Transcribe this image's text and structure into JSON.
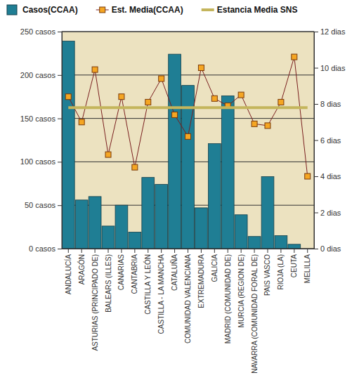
{
  "chart_data": {
    "type": "bar",
    "categories": [
      "ANDALUCÍA",
      "ARAGÓN",
      "ASTURIAS (PRINCIPADO DE)",
      "BALEARS (ILLES)",
      "CANARIAS",
      "CANTABRIA",
      "CASTILLA Y LEÓN",
      "CASTILLA - LA MANCHA",
      "CATALUÑA",
      "COMUNIDAD VALENCIANA",
      "EXTREMADURA",
      "GALICIA",
      "MADRID (COMUNIDAD DE)",
      "MURCIA (REGION DE)",
      "NAVARRA (COMUNIDAD FORAL DE)",
      "PAIS VASCO",
      "RIOJA (LA)",
      "CEUTA",
      "MELILLA"
    ],
    "series": [
      {
        "name": "Casos(CCAA)",
        "type": "bar",
        "color": "#1f7e94",
        "values": [
          239,
          56,
          60,
          26,
          50,
          19,
          82,
          74,
          224,
          188,
          47,
          121,
          176,
          39,
          14,
          83,
          15,
          5,
          0
        ]
      },
      {
        "name": "Est. Media(CCAA)",
        "type": "line",
        "axis": "y2",
        "color": "#7a1f1f",
        "marker": "square",
        "line_style": "solid",
        "values": [
          8.4,
          7.0,
          9.9,
          5.2,
          8.4,
          4.5,
          8.1,
          9.4,
          7.4,
          6.2,
          10.0,
          8.3,
          7.9,
          8.5,
          6.9,
          6.8,
          8.1,
          10.6,
          4.0
        ]
      },
      {
        "name": "Estancia Media SNS",
        "type": "line",
        "axis": "y2",
        "color": "#c4b55c",
        "marker": "none",
        "line_style": "solid",
        "values": [
          7.8,
          7.8,
          7.8,
          7.8,
          7.8,
          7.8,
          7.8,
          7.8,
          7.8,
          7.8,
          7.8,
          7.8,
          7.8,
          7.8,
          7.8,
          7.8,
          7.8,
          7.8,
          7.8
        ]
      }
    ],
    "ylim": [
      0,
      250
    ],
    "yticks": [
      {
        "value": 0,
        "label": "0 casos"
      },
      {
        "value": 50,
        "label": "50 casos"
      },
      {
        "value": 100,
        "label": "100 casos"
      },
      {
        "value": 150,
        "label": "150 casos"
      },
      {
        "value": 200,
        "label": "200 casos"
      },
      {
        "value": 250,
        "label": "250 casos"
      }
    ],
    "y2lim": [
      0,
      12
    ],
    "y2ticks": [
      {
        "value": 0,
        "label": "0 dias"
      },
      {
        "value": 2,
        "label": "2 dias"
      },
      {
        "value": 4,
        "label": "4 dias"
      },
      {
        "value": 6,
        "label": "6 dias"
      },
      {
        "value": 8,
        "label": "8 dias"
      },
      {
        "value": 10,
        "label": "10 dias"
      },
      {
        "value": 12,
        "label": "12 dias"
      }
    ],
    "grid": true,
    "legend": "top"
  }
}
